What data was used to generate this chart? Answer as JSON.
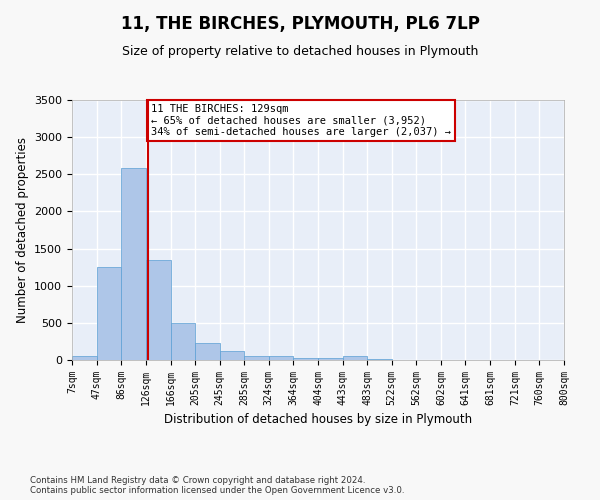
{
  "title": "11, THE BIRCHES, PLYMOUTH, PL6 7LP",
  "subtitle": "Size of property relative to detached houses in Plymouth",
  "xlabel": "Distribution of detached houses by size in Plymouth",
  "ylabel": "Number of detached properties",
  "footer_line1": "Contains HM Land Registry data © Crown copyright and database right 2024.",
  "footer_line2": "Contains public sector information licensed under the Open Government Licence v3.0.",
  "annotation_line1": "11 THE BIRCHES: 129sqm",
  "annotation_line2": "← 65% of detached houses are smaller (3,952)",
  "annotation_line3": "34% of semi-detached houses are larger (2,037) →",
  "property_size": 129,
  "bin_edges": [
    7,
    47,
    86,
    126,
    166,
    205,
    245,
    285,
    324,
    364,
    404,
    443,
    483,
    522,
    562,
    602,
    641,
    681,
    721,
    760,
    800
  ],
  "bar_heights": [
    50,
    1250,
    2580,
    1350,
    500,
    230,
    120,
    60,
    50,
    30,
    25,
    50,
    20,
    5,
    3,
    2,
    1,
    1,
    0,
    1
  ],
  "bar_color": "#aec6e8",
  "bar_edge_color": "#5a9fd4",
  "vline_color": "#cc0000",
  "annotation_box_color": "#cc0000",
  "background_color": "#e8eef8",
  "grid_color": "#ffffff",
  "ylim": [
    0,
    3500
  ],
  "xlim": [
    7,
    800
  ]
}
